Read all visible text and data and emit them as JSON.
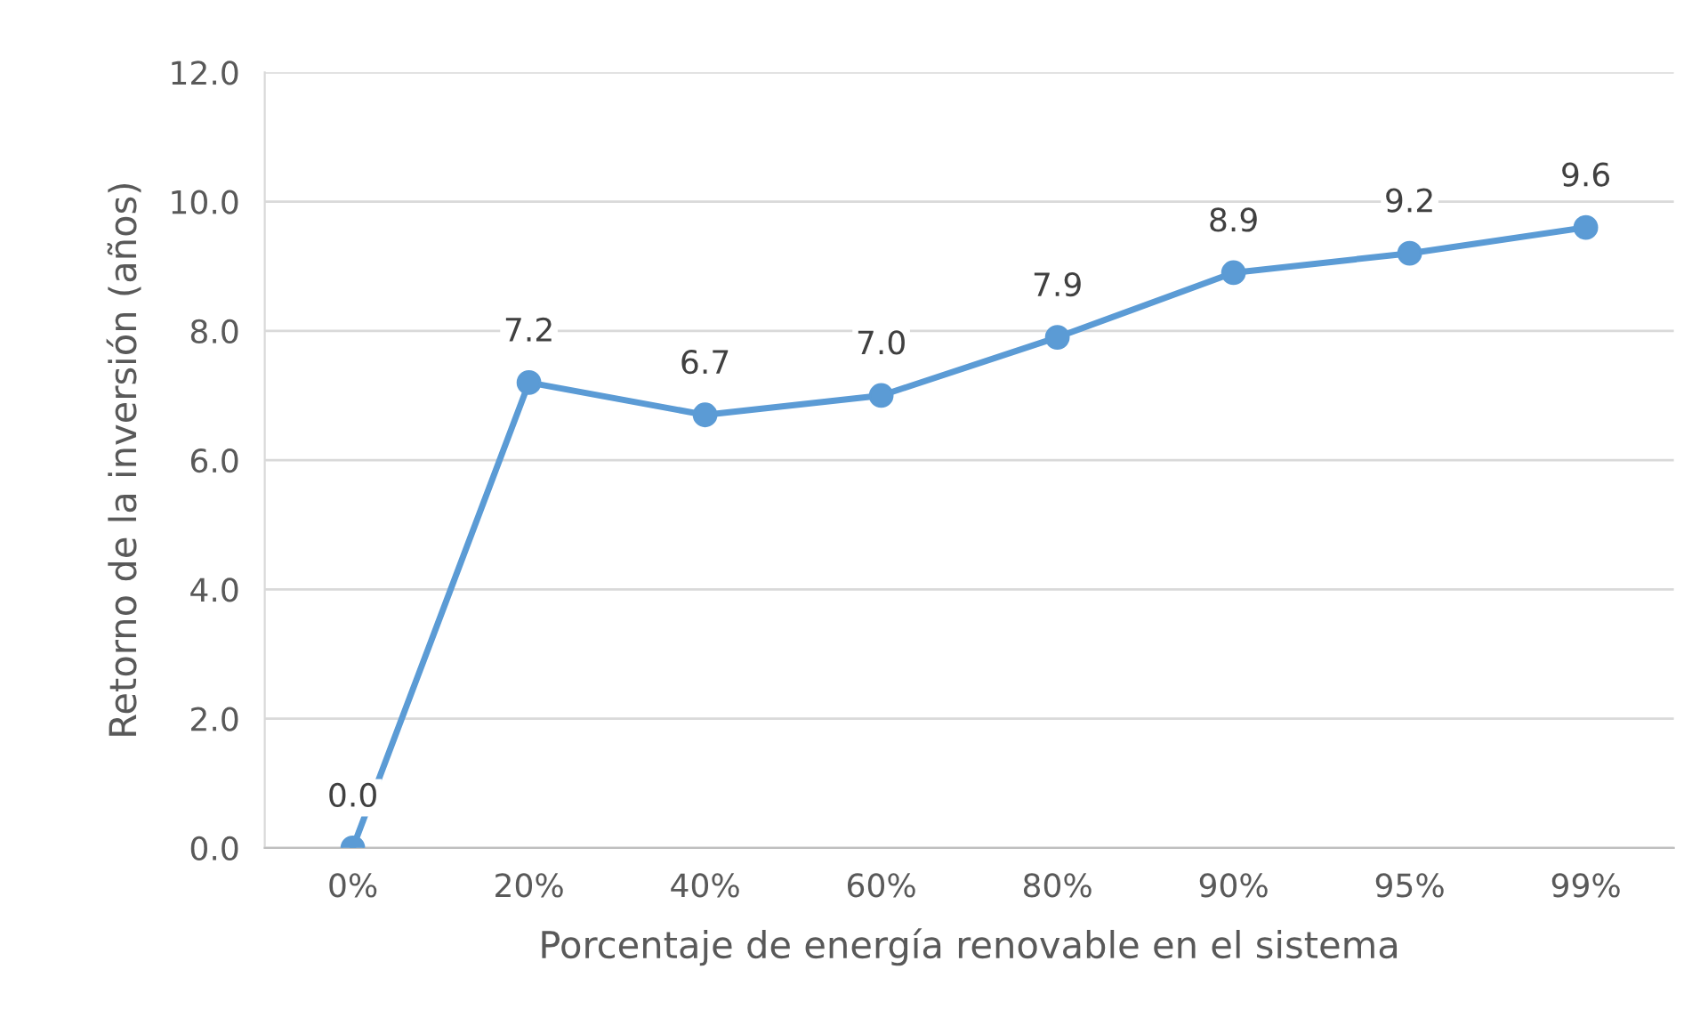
{
  "chart_data": {
    "type": "line",
    "xlabel": "Porcentaje de energía renovable en el sistema",
    "ylabel": "Retorno de la inversión (años)",
    "categories": [
      "0%",
      "20%",
      "40%",
      "60%",
      "80%",
      "90%",
      "95%",
      "99%"
    ],
    "series": [
      {
        "color": "#5b9bd5",
        "values": [
          0.0,
          7.2,
          6.7,
          7.0,
          7.9,
          8.9,
          9.2,
          9.6
        ],
        "value_labels": [
          "0.0",
          "7.2",
          "6.7",
          "7.0",
          "7.9",
          "8.9",
          "9.2",
          "9.6"
        ]
      }
    ],
    "ylim": [
      0,
      12
    ],
    "yticks": [
      {
        "value": 0,
        "label": "0.0"
      },
      {
        "value": 2,
        "label": "2.0"
      },
      {
        "value": 4,
        "label": "4.0"
      },
      {
        "value": 6,
        "label": "6.0"
      },
      {
        "value": 8,
        "label": "8.0"
      },
      {
        "value": 10,
        "label": "10.0"
      },
      {
        "value": 12,
        "label": "12.0"
      }
    ],
    "grid": "y",
    "marker": "circle",
    "line_style": "solid"
  }
}
